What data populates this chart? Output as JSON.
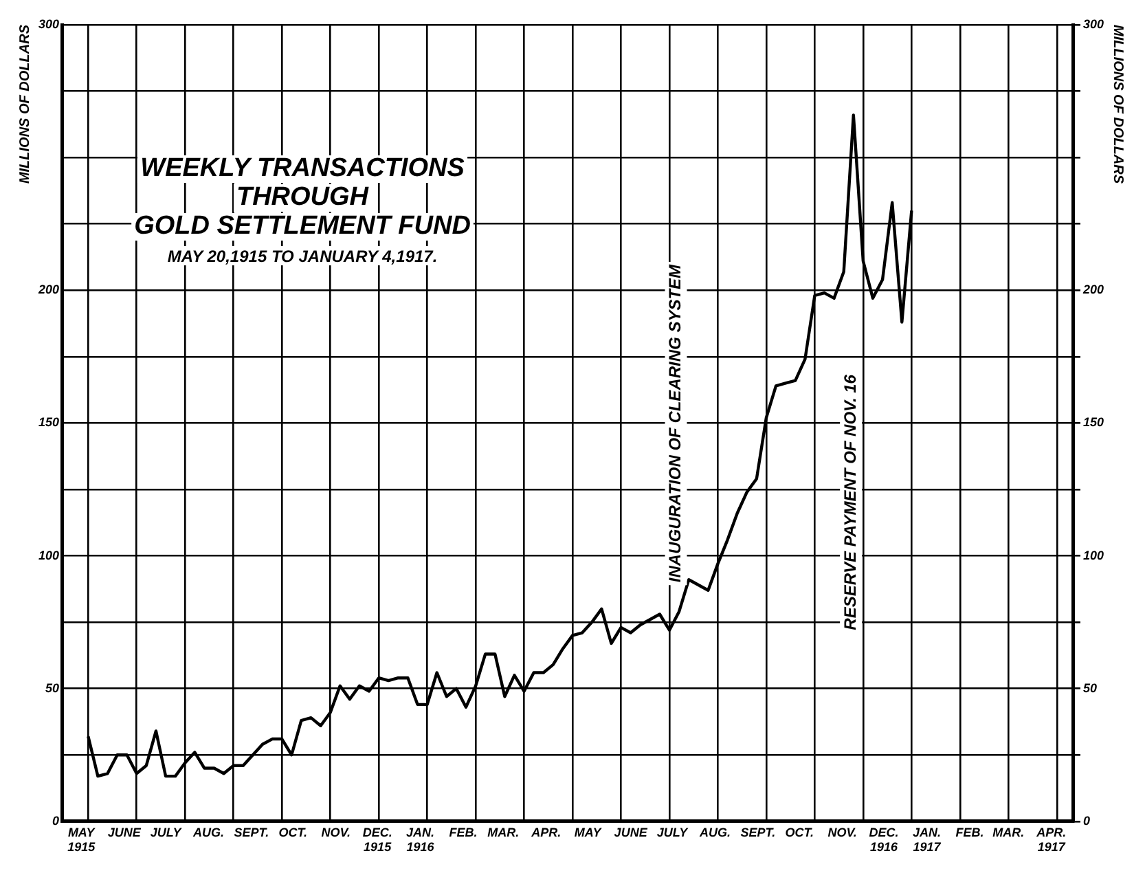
{
  "chart_data": {
    "type": "line",
    "title": "WEEKLY TRANSACTIONS\nTHROUGH\nGOLD SETTLEMENT FUND",
    "subtitle": "MAY 20,1915 TO JANUARY 4,1917.",
    "ylabel": "MILLIONS OF DOLLARS",
    "y2label": "MILLIONS OF DOLLARS",
    "x": [
      "1915-05-20",
      "1915-05-27",
      "1915-06-03",
      "1915-06-10",
      "1915-06-17",
      "1915-06-24",
      "1915-07-01",
      "1915-07-08",
      "1915-07-15",
      "1915-07-22",
      "1915-07-29",
      "1915-08-05",
      "1915-08-12",
      "1915-08-19",
      "1915-08-26",
      "1915-09-02",
      "1915-09-09",
      "1915-09-16",
      "1915-09-23",
      "1915-09-30",
      "1915-10-07",
      "1915-10-14",
      "1915-10-21",
      "1915-10-28",
      "1915-11-04",
      "1915-11-11",
      "1915-11-18",
      "1915-11-25",
      "1915-12-02",
      "1915-12-09",
      "1915-12-16",
      "1915-12-23",
      "1915-12-30",
      "1916-01-06",
      "1916-01-13",
      "1916-01-20",
      "1916-01-27",
      "1916-02-03",
      "1916-02-10",
      "1916-02-17",
      "1916-02-24",
      "1916-03-02",
      "1916-03-09",
      "1916-03-16",
      "1916-03-23",
      "1916-03-30",
      "1916-04-06",
      "1916-04-13",
      "1916-04-20",
      "1916-04-27",
      "1916-05-04",
      "1916-05-11",
      "1916-05-18",
      "1916-05-25",
      "1916-06-01",
      "1916-06-08",
      "1916-06-15",
      "1916-06-22",
      "1916-06-29",
      "1916-07-06",
      "1916-07-13",
      "1916-07-20",
      "1916-07-27",
      "1916-08-03",
      "1916-08-10",
      "1916-08-17",
      "1916-08-24",
      "1916-08-31",
      "1916-09-07",
      "1916-09-14",
      "1916-09-21",
      "1916-09-28",
      "1916-10-05",
      "1916-10-12",
      "1916-10-19",
      "1916-10-26",
      "1916-11-02",
      "1916-11-09",
      "1916-11-16",
      "1916-11-23",
      "1916-11-30",
      "1916-12-07",
      "1916-12-14",
      "1916-12-21",
      "1916-12-28",
      "1917-01-04"
    ],
    "series": [
      {
        "color": "#000000",
        "values": [
          32,
          17,
          18,
          25,
          25,
          18,
          21,
          34,
          17,
          17,
          22,
          26,
          20,
          20,
          18,
          21,
          21,
          25,
          29,
          31,
          31,
          25,
          38,
          39,
          36,
          41,
          51,
          46,
          51,
          49,
          54,
          53,
          54,
          54,
          44,
          44,
          56,
          47,
          50,
          43,
          51,
          63,
          63,
          47,
          55,
          49,
          56,
          56,
          59,
          65,
          70,
          71,
          75,
          80,
          67,
          73,
          71,
          74,
          76,
          78,
          72,
          79,
          91,
          89,
          87,
          97,
          106,
          116,
          124,
          129,
          152,
          164,
          165,
          166,
          174,
          198,
          199,
          197,
          207,
          266,
          211,
          197,
          204,
          233,
          188,
          230
        ]
      }
    ],
    "xlim": [
      "1915-05-01",
      "1917-05-01"
    ],
    "xticks": [
      {
        "value": "1915-05-20",
        "label": null
      },
      {
        "value": "1915-06-24",
        "label": null
      },
      {
        "value": "1915-07-29",
        "label": null
      },
      {
        "value": "1915-09-02",
        "label": null
      },
      {
        "value": "1915-10-07",
        "label": null
      },
      {
        "value": "1915-11-11",
        "label": null
      },
      {
        "value": "1915-12-16",
        "label": null
      },
      {
        "value": "1916-01-20",
        "label": null
      },
      {
        "value": "1916-02-24",
        "label": null
      },
      {
        "value": "1916-03-30",
        "label": null
      },
      {
        "value": "1916-05-04",
        "label": null
      },
      {
        "value": "1916-06-08",
        "label": null
      },
      {
        "value": "1916-07-13",
        "label": null
      },
      {
        "value": "1916-08-17",
        "label": null
      },
      {
        "value": "1916-09-21",
        "label": null
      },
      {
        "value": "1916-10-26",
        "label": null
      },
      {
        "value": "1916-11-30",
        "label": null
      },
      {
        "value": "1917-01-04",
        "label": null
      },
      {
        "value": "1917-02-08",
        "label": null
      },
      {
        "value": "1917-03-15",
        "label": null
      },
      {
        "value": "1917-04-19",
        "label": null
      },
      {
        "value": "1915-05-15",
        "label": "MAY\n1915"
      },
      {
        "value": "1915-06-15",
        "label": "JUNE"
      },
      {
        "value": "1915-07-15",
        "label": "JULY"
      },
      {
        "value": "1915-08-15",
        "label": "AUG."
      },
      {
        "value": "1915-09-15",
        "label": "SEPT."
      },
      {
        "value": "1915-10-15",
        "label": "OCT."
      },
      {
        "value": "1915-11-15",
        "label": "NOV."
      },
      {
        "value": "1915-12-15",
        "label": "DEC.\n1915"
      },
      {
        "value": "1916-01-15",
        "label": "JAN.\n1916"
      },
      {
        "value": "1916-02-15",
        "label": "FEB."
      },
      {
        "value": "1916-03-15",
        "label": "MAR."
      },
      {
        "value": "1916-04-15",
        "label": "APR."
      },
      {
        "value": "1916-05-15",
        "label": "MAY"
      },
      {
        "value": "1916-06-15",
        "label": "JUNE"
      },
      {
        "value": "1916-07-15",
        "label": "JULY"
      },
      {
        "value": "1916-08-15",
        "label": "AUG."
      },
      {
        "value": "1916-09-15",
        "label": "SEPT."
      },
      {
        "value": "1916-10-15",
        "label": "OCT."
      },
      {
        "value": "1916-11-15",
        "label": "NOV."
      },
      {
        "value": "1916-12-15",
        "label": "DEC.\n1916"
      },
      {
        "value": "1917-01-15",
        "label": "JAN.\n1917"
      },
      {
        "value": "1917-02-15",
        "label": "FEB."
      },
      {
        "value": "1917-03-15",
        "label": "MAR."
      },
      {
        "value": "1917-04-15",
        "label": "APR.\n1917"
      }
    ],
    "ylim": [
      0,
      300
    ],
    "yticks": [
      0,
      {
        "value": 25,
        "label": null
      },
      50,
      {
        "value": 75,
        "label": null
      },
      100,
      {
        "value": 125,
        "label": null
      },
      150,
      {
        "value": 175,
        "label": null
      },
      200,
      {
        "value": 225,
        "label": null
      },
      {
        "value": 250,
        "label": null
      },
      {
        "value": 275,
        "label": null
      },
      300
    ],
    "y2lim": [
      0,
      300
    ],
    "y2ticks": [
      0,
      {
        "value": 25,
        "label": null
      },
      50,
      {
        "value": 75,
        "label": null
      },
      100,
      {
        "value": 125,
        "label": null
      },
      150,
      {
        "value": 175,
        "label": null
      },
      200,
      {
        "value": 225,
        "label": null
      },
      {
        "value": 250,
        "label": null
      },
      {
        "value": 275,
        "label": null
      },
      300
    ],
    "annotations": [
      "INAUGURATION OF CLEARING SYSTEM",
      "RESERVE PAYMENT OF NOV. 16"
    ],
    "grid": true,
    "legend": false,
    "marker": "none",
    "line_style": "solid"
  }
}
